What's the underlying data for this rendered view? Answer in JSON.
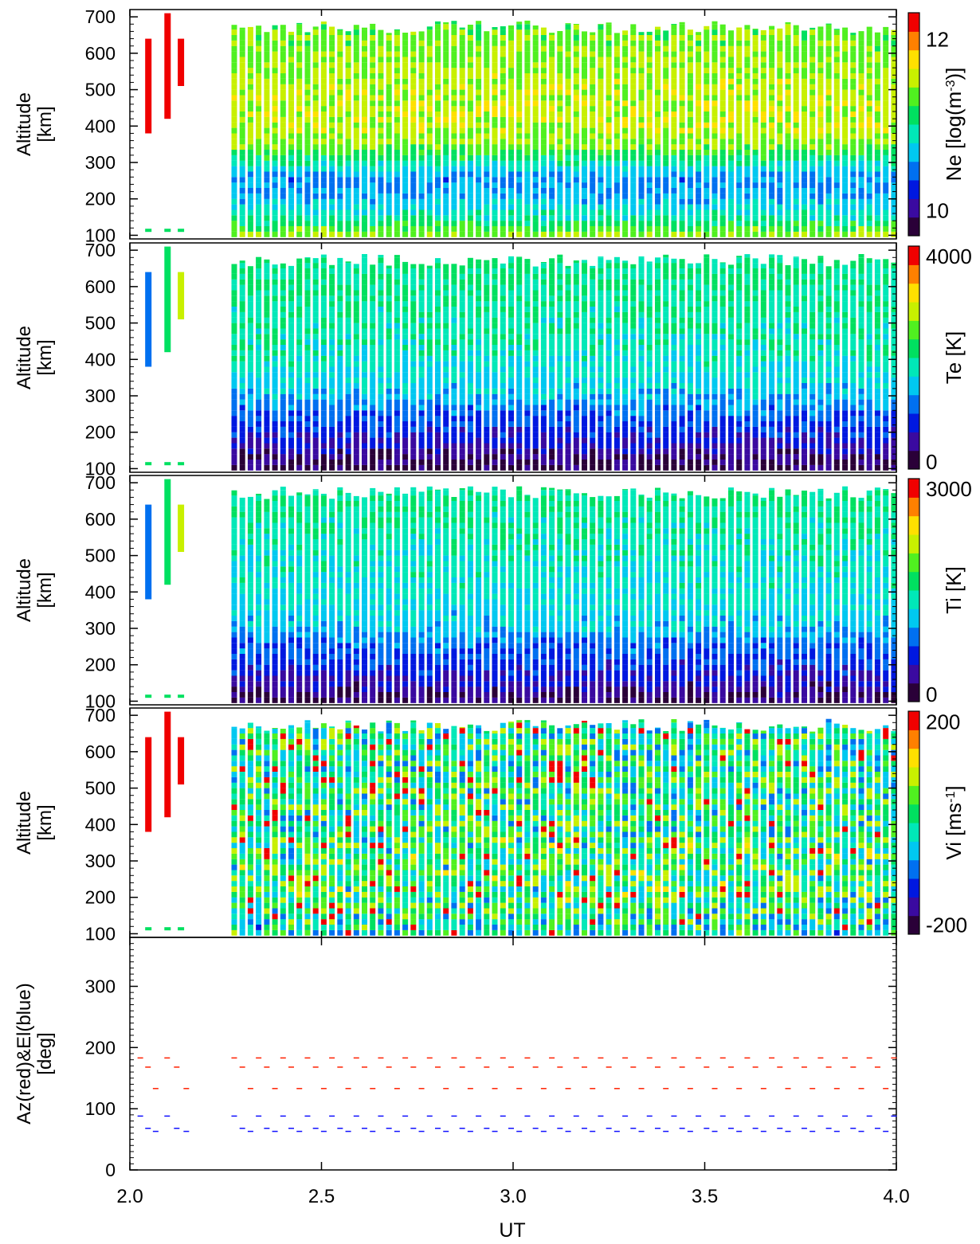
{
  "chart_data": {
    "type": "heatmap",
    "xlabel": "UT",
    "x_ticks": [
      "2.0",
      "2.5",
      "3.0",
      "3.5",
      "4.0"
    ],
    "xlim": [
      2.0,
      4.0
    ],
    "panels": [
      {
        "name": "ne",
        "ylabel": [
          "Altitude",
          "[km]"
        ],
        "ylim": [
          90,
          720
        ],
        "y_ticks": [
          100,
          200,
          300,
          400,
          500,
          600,
          700
        ],
        "colorbar": {
          "label": "Ne [log(m",
          "label_sup": "-3",
          "label_end": ")]",
          "ticks": [
            {
              "v": 12,
              "t": "12"
            },
            {
              "v": 10,
              "t": "10"
            }
          ],
          "range": [
            9.7,
            12.3
          ]
        },
        "profile": [
          [
            100,
            11.4
          ],
          [
            130,
            11.0
          ],
          [
            200,
            10.6
          ],
          [
            250,
            10.5
          ],
          [
            300,
            11.0
          ],
          [
            340,
            11.4
          ],
          [
            400,
            11.55
          ],
          [
            500,
            11.5
          ],
          [
            600,
            11.4
          ],
          [
            700,
            11.3
          ]
        ]
      },
      {
        "name": "te",
        "ylabel": [
          "Altitude",
          "[km]"
        ],
        "ylim": [
          90,
          720
        ],
        "y_ticks": [
          100,
          200,
          300,
          400,
          500,
          600,
          700
        ],
        "colorbar": {
          "label": "Te [K]",
          "label_sup": "",
          "label_end": "",
          "ticks": [
            {
              "v": 4000,
              "t": "4000"
            },
            {
              "v": 0,
              "t": "0"
            }
          ],
          "range": [
            0,
            4000
          ]
        },
        "profile": [
          [
            100,
            200
          ],
          [
            150,
            600
          ],
          [
            200,
            900
          ],
          [
            260,
            1200
          ],
          [
            300,
            1500
          ],
          [
            400,
            1800
          ],
          [
            500,
            1900
          ],
          [
            600,
            2000
          ],
          [
            700,
            2050
          ]
        ]
      },
      {
        "name": "ti",
        "ylabel": [
          "Altitude",
          "[km]"
        ],
        "ylim": [
          90,
          720
        ],
        "y_ticks": [
          100,
          200,
          300,
          400,
          500,
          600,
          700
        ],
        "colorbar": {
          "label": "Ti [K]",
          "label_sup": "",
          "label_end": "",
          "ticks": [
            {
              "v": 3000,
              "t": "3000"
            },
            {
              "v": 0,
              "t": "0"
            }
          ],
          "range": [
            0,
            3000
          ]
        },
        "profile": [
          [
            100,
            250
          ],
          [
            150,
            500
          ],
          [
            200,
            700
          ],
          [
            260,
            900
          ],
          [
            300,
            1150
          ],
          [
            400,
            1300
          ],
          [
            500,
            1350
          ],
          [
            600,
            1450
          ],
          [
            700,
            1500
          ]
        ]
      },
      {
        "name": "vi",
        "ylabel": [
          "Altitude",
          "[km]"
        ],
        "ylim": [
          90,
          720
        ],
        "y_ticks": [
          100,
          200,
          300,
          400,
          500,
          600,
          700
        ],
        "colorbar": {
          "label": "Vi [ms",
          "label_sup": "-1",
          "label_end": "]",
          "ticks": [
            {
              "v": 200,
              "t": "200"
            },
            {
              "v": -200,
              "t": "-200"
            }
          ],
          "range": [
            -220,
            220
          ]
        },
        "profile": [
          [
            100,
            -20
          ],
          [
            200,
            20
          ],
          [
            300,
            20
          ],
          [
            400,
            10
          ],
          [
            500,
            5
          ],
          [
            600,
            0
          ],
          [
            700,
            -5
          ]
        ]
      }
    ],
    "pointing": {
      "ylabel": [
        "Az(red)&El(blue)",
        "[deg]"
      ],
      "ylim": [
        0,
        380
      ],
      "y_ticks": [
        0,
        100,
        200,
        300
      ],
      "azimuth_levels": [
        183,
        168,
        133
      ],
      "elevation_levels": [
        88,
        68,
        63
      ]
    },
    "colors": {
      "scale": [
        "#2a0038",
        "#3a0aa0",
        "#0018e0",
        "#0070f0",
        "#00c8f0",
        "#00e8b8",
        "#00e060",
        "#50f020",
        "#c8f000",
        "#ffe000",
        "#ff8000",
        "#f00000"
      ],
      "azimuth": "#ff2000",
      "elevation": "#1010ff",
      "axis": "#000000"
    }
  }
}
